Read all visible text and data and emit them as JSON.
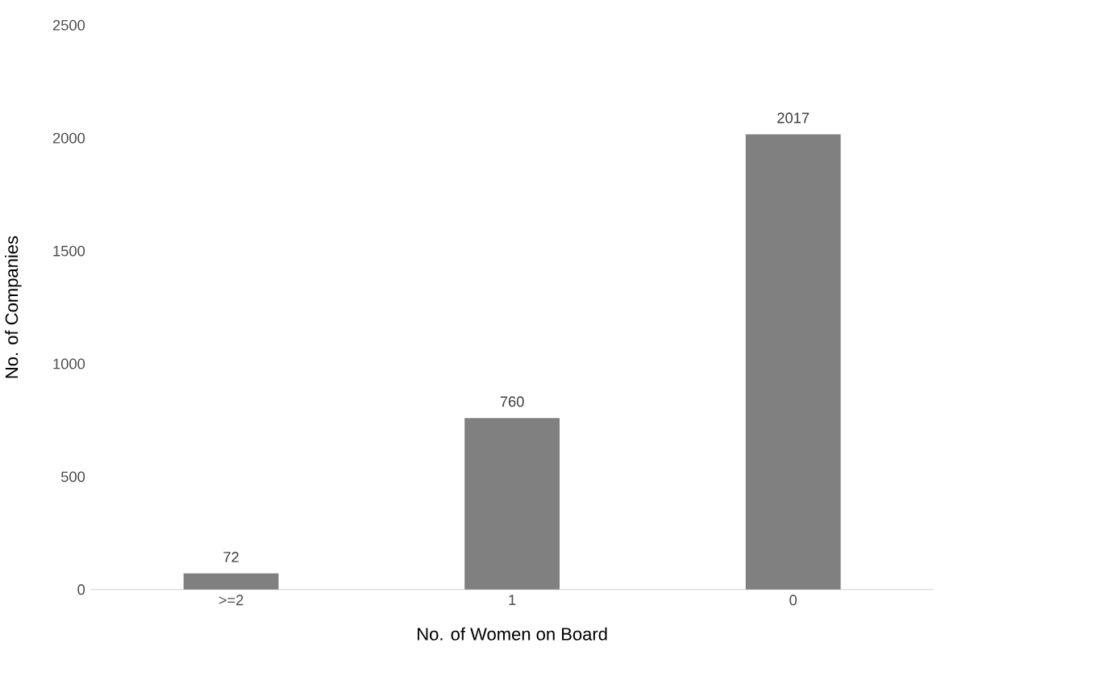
{
  "chart_data": {
    "type": "bar",
    "xlabel": "No. of Women on Board",
    "ylabel": "No. of Companies",
    "categories": [
      ">=2",
      "1",
      "0"
    ],
    "values": [
      72,
      760,
      2017
    ],
    "color": "#808080",
    "ylim": [
      0,
      2500
    ],
    "yticks": [
      0,
      500,
      1000,
      1500,
      2000,
      2500
    ],
    "data_labels": true
  }
}
